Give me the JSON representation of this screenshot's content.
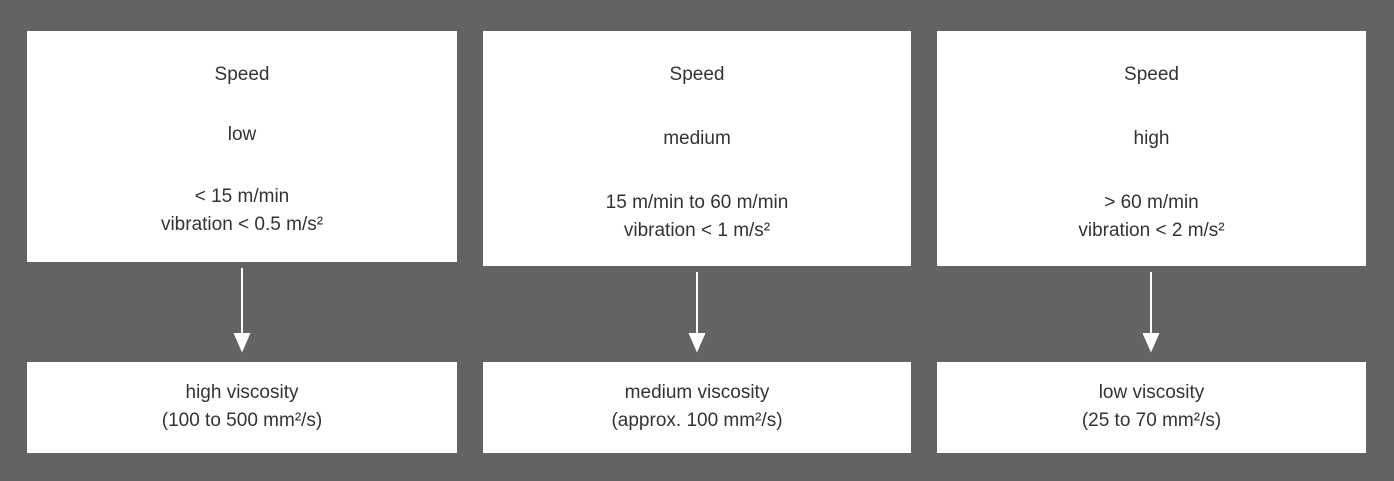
{
  "columns": [
    {
      "title": "Speed",
      "level": "low",
      "range": "< 15 m/min",
      "vibration": "vibration < 0.5 m/s²",
      "result": "high viscosity",
      "result_detail": "(100 to 500 mm²/s)"
    },
    {
      "title": "Speed",
      "level": "medium",
      "range": "15 m/min to 60 m/min",
      "vibration": "vibration < 1 m/s²",
      "result": "medium viscosity",
      "result_detail": "(approx. 100 mm²/s)"
    },
    {
      "title": "Speed",
      "level": "high",
      "range": "> 60 m/min",
      "vibration": "vibration < 2 m/s²",
      "result": "low viscosity",
      "result_detail": "(25 to 70 mm²/s)"
    }
  ]
}
